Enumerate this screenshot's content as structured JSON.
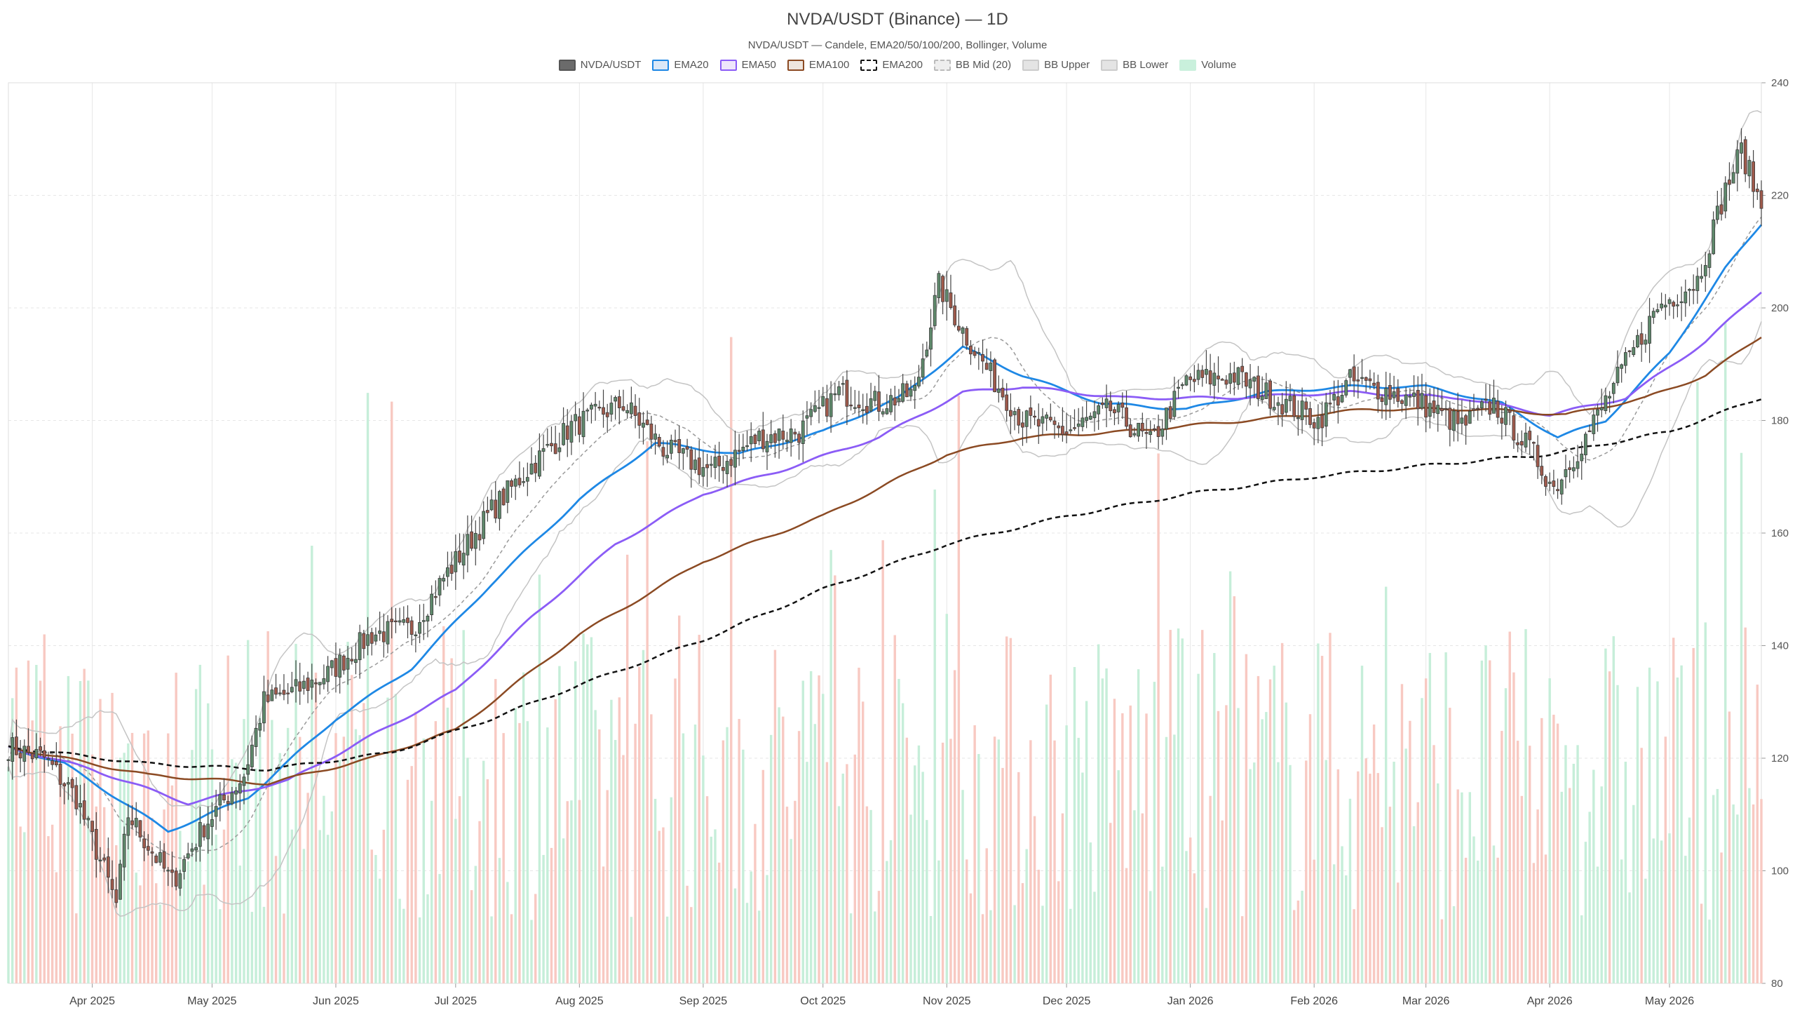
{
  "title": "NVDA/USDT (Binance) — 1D",
  "subtitle": "NVDA/USDT — Candele, EMA20/50/100/200, Bollinger, Volume",
  "legend": [
    {
      "label": "NVDA/USDT",
      "fill": "#6b6b6b",
      "border": "#555555",
      "dashed": false
    },
    {
      "label": "EMA20",
      "fill": "#dbe8f7",
      "border": "#1e88e5",
      "dashed": false
    },
    {
      "label": "EMA50",
      "fill": "#eee6fb",
      "border": "#8b5cf6",
      "dashed": false
    },
    {
      "label": "EMA100",
      "fill": "#eee5de",
      "border": "#8b4a23",
      "dashed": false
    },
    {
      "label": "EMA200",
      "fill": "#ffffff",
      "border": "#111111",
      "dashed": true
    },
    {
      "label": "BB Mid (20)",
      "fill": "#eeeeee",
      "border": "#bbbbbb",
      "dashed": true
    },
    {
      "label": "BB Upper",
      "fill": "#e4e4e4",
      "border": "#cccccc",
      "dashed": false
    },
    {
      "label": "BB Lower",
      "fill": "#e4e4e4",
      "border": "#cccccc",
      "dashed": false
    },
    {
      "label": "Volume",
      "fill": "#c9f0dc",
      "border": "#c9f0dc",
      "dashed": false
    }
  ],
  "colors": {
    "up": "#5f8a6c",
    "down": "#a05a4c",
    "vol_up": "#c6eed9",
    "vol_down": "#f8c9c2",
    "ema20": "#1e88e5",
    "ema50": "#8b5cf6",
    "ema100": "#8b4a23",
    "ema200": "#111111",
    "bb_band": "#c4c4c4",
    "bb_mid": "#9a9a9a",
    "grid": "#e6e6e6"
  },
  "chart_data": {
    "type": "candlestick",
    "ylim": [
      80,
      240
    ],
    "y_ticks": [
      80,
      100,
      120,
      140,
      160,
      180,
      200,
      220,
      240
    ],
    "x_start": "2025-03-11",
    "x_end": "2026-05-24",
    "x_ticks": [
      {
        "label": "Apr 2025",
        "date": "2025-04-01"
      },
      {
        "label": "May 2025",
        "date": "2025-05-01"
      },
      {
        "label": "Jun 2025",
        "date": "2025-06-01"
      },
      {
        "label": "Jul 2025",
        "date": "2025-07-01"
      },
      {
        "label": "Aug 2025",
        "date": "2025-08-01"
      },
      {
        "label": "Sep 2025",
        "date": "2025-09-01"
      },
      {
        "label": "Oct 2025",
        "date": "2025-10-01"
      },
      {
        "label": "Nov 2025",
        "date": "2025-11-01"
      },
      {
        "label": "Dec 2025",
        "date": "2025-12-01"
      },
      {
        "label": "Jan 2026",
        "date": "2026-01-01"
      },
      {
        "label": "Feb 2026",
        "date": "2026-02-01"
      },
      {
        "label": "Mar 2026",
        "date": "2026-03-01"
      },
      {
        "label": "Apr 2026",
        "date": "2026-04-01"
      },
      {
        "label": "May 2026",
        "date": "2026-05-01"
      }
    ],
    "close_anchors": [
      [
        "2025-03-11",
        122
      ],
      [
        "2025-03-20",
        120
      ],
      [
        "2025-03-28",
        113
      ],
      [
        "2025-04-04",
        100
      ],
      [
        "2025-04-07",
        94
      ],
      [
        "2025-04-10",
        110
      ],
      [
        "2025-04-21",
        98
      ],
      [
        "2025-04-29",
        108
      ],
      [
        "2025-05-09",
        117
      ],
      [
        "2025-05-14",
        130
      ],
      [
        "2025-05-22",
        132
      ],
      [
        "2025-05-30",
        135
      ],
      [
        "2025-06-10",
        142
      ],
      [
        "2025-06-20",
        143
      ],
      [
        "2025-06-28",
        152
      ],
      [
        "2025-07-10",
        164
      ],
      [
        "2025-07-20",
        172
      ],
      [
        "2025-07-30",
        179
      ],
      [
        "2025-08-12",
        183
      ],
      [
        "2025-08-22",
        175
      ],
      [
        "2025-09-03",
        171
      ],
      [
        "2025-09-15",
        177
      ],
      [
        "2025-09-25",
        178
      ],
      [
        "2025-10-05",
        185
      ],
      [
        "2025-10-15",
        183
      ],
      [
        "2025-10-24",
        185
      ],
      [
        "2025-10-30",
        204
      ],
      [
        "2025-11-05",
        196
      ],
      [
        "2025-11-12",
        188
      ],
      [
        "2025-11-20",
        180
      ],
      [
        "2025-12-01",
        178
      ],
      [
        "2025-12-12",
        182
      ],
      [
        "2025-12-22",
        176
      ],
      [
        "2025-12-31",
        187
      ],
      [
        "2026-01-12",
        188
      ],
      [
        "2026-01-22",
        184
      ],
      [
        "2026-02-02",
        180
      ],
      [
        "2026-02-10",
        187
      ],
      [
        "2026-02-20",
        185
      ],
      [
        "2026-02-28",
        183
      ],
      [
        "2026-03-10",
        179
      ],
      [
        "2026-03-18",
        183
      ],
      [
        "2026-03-28",
        174
      ],
      [
        "2026-04-02",
        168
      ],
      [
        "2026-04-10",
        177
      ],
      [
        "2026-04-20",
        190
      ],
      [
        "2026-04-28",
        200
      ],
      [
        "2026-05-08",
        205
      ],
      [
        "2026-05-15",
        221
      ],
      [
        "2026-05-19",
        228
      ],
      [
        "2026-05-24",
        218
      ]
    ],
    "series": [
      {
        "name": "NVDA/USDT",
        "kind": "ohlc"
      },
      {
        "name": "EMA20",
        "kind": "line",
        "anchors": [
          [
            "2025-03-11",
            122
          ],
          [
            "2025-03-25",
            119
          ],
          [
            "2025-04-20",
            107
          ],
          [
            "2025-05-10",
            113
          ],
          [
            "2025-06-01",
            127
          ],
          [
            "2025-06-20",
            136
          ],
          [
            "2025-07-10",
            151
          ],
          [
            "2025-08-01",
            166
          ],
          [
            "2025-08-20",
            176
          ],
          [
            "2025-09-10",
            174
          ],
          [
            "2025-10-01",
            178
          ],
          [
            "2025-10-20",
            184
          ],
          [
            "2025-11-05",
            193
          ],
          [
            "2025-11-20",
            188
          ],
          [
            "2025-12-10",
            183
          ],
          [
            "2025-12-31",
            182
          ],
          [
            "2026-01-20",
            185
          ],
          [
            "2026-02-10",
            186
          ],
          [
            "2026-03-01",
            186
          ],
          [
            "2026-03-20",
            183
          ],
          [
            "2026-04-03",
            177
          ],
          [
            "2026-04-15",
            180
          ],
          [
            "2026-05-01",
            192
          ],
          [
            "2026-05-15",
            207
          ],
          [
            "2026-05-24",
            215
          ]
        ]
      },
      {
        "name": "EMA50",
        "kind": "line",
        "anchors": [
          [
            "2025-03-11",
            122
          ],
          [
            "2025-04-01",
            118
          ],
          [
            "2025-04-25",
            112
          ],
          [
            "2025-05-20",
            116
          ],
          [
            "2025-06-10",
            124
          ],
          [
            "2025-07-01",
            132
          ],
          [
            "2025-07-20",
            145
          ],
          [
            "2025-08-10",
            158
          ],
          [
            "2025-09-01",
            167
          ],
          [
            "2025-09-20",
            171
          ],
          [
            "2025-10-15",
            177
          ],
          [
            "2025-11-05",
            185
          ],
          [
            "2025-11-20",
            186
          ],
          [
            "2025-12-15",
            184
          ],
          [
            "2026-01-10",
            184
          ],
          [
            "2026-02-10",
            185
          ],
          [
            "2026-03-10",
            184
          ],
          [
            "2026-04-01",
            181
          ],
          [
            "2026-04-20",
            184
          ],
          [
            "2026-05-10",
            194
          ],
          [
            "2026-05-24",
            203
          ]
        ]
      },
      {
        "name": "EMA100",
        "kind": "line",
        "anchors": [
          [
            "2025-03-11",
            122
          ],
          [
            "2025-04-15",
            117
          ],
          [
            "2025-05-15",
            115.5
          ],
          [
            "2025-06-10",
            120
          ],
          [
            "2025-07-01",
            125
          ],
          [
            "2025-08-01",
            142
          ],
          [
            "2025-09-01",
            155
          ],
          [
            "2025-10-01",
            163
          ],
          [
            "2025-11-01",
            174
          ],
          [
            "2025-11-20",
            177
          ],
          [
            "2025-12-15",
            178
          ],
          [
            "2026-01-15",
            180
          ],
          [
            "2026-02-15",
            182
          ],
          [
            "2026-03-15",
            182
          ],
          [
            "2026-04-05",
            181
          ],
          [
            "2026-04-25",
            184
          ],
          [
            "2026-05-10",
            188
          ],
          [
            "2026-05-24",
            195
          ]
        ]
      },
      {
        "name": "EMA200",
        "kind": "line",
        "anchors": [
          [
            "2025-03-11",
            122
          ],
          [
            "2025-04-15",
            119
          ],
          [
            "2025-05-15",
            118
          ],
          [
            "2025-06-15",
            121
          ],
          [
            "2025-07-10",
            127
          ],
          [
            "2025-08-01",
            133
          ],
          [
            "2025-09-01",
            141
          ],
          [
            "2025-10-01",
            150
          ],
          [
            "2025-11-01",
            158
          ],
          [
            "2025-12-01",
            163
          ],
          [
            "2026-01-01",
            167
          ],
          [
            "2026-02-01",
            170
          ],
          [
            "2026-03-01",
            172
          ],
          [
            "2026-04-01",
            174
          ],
          [
            "2026-05-01",
            178
          ],
          [
            "2026-05-24",
            184
          ]
        ]
      },
      {
        "name": "BB Mid (20)",
        "kind": "bollinger",
        "period": 20
      }
    ]
  }
}
